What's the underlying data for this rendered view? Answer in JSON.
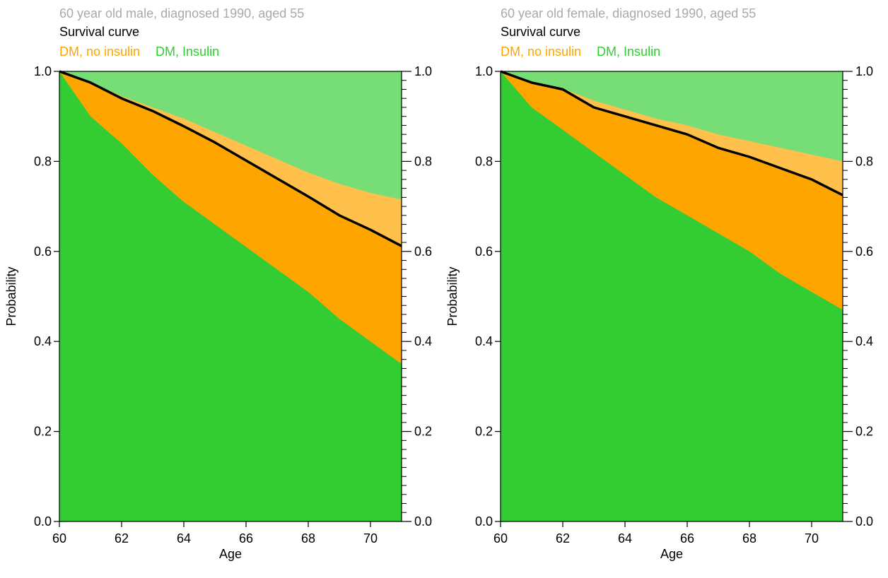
{
  "colors": {
    "insulin": "#33cc33",
    "insulin_light": "#77dd77",
    "no_insulin": "#ffa500",
    "no_insulin_light": "#ffc04c",
    "survival": "#000000",
    "subtitle": "#a9a9a9"
  },
  "chart_data": [
    {
      "type": "area",
      "title": "60 year old male, diagnosed 1990, aged 55",
      "subtitle": "Survival curve",
      "legend": [
        "DM, no insulin",
        "DM, Insulin"
      ],
      "legend_placement": "top-left",
      "xlabel": "Age",
      "ylabel": "Probability",
      "xlim": [
        60,
        71
      ],
      "ylim": [
        0,
        1
      ],
      "x_ticks": [
        "60",
        "62",
        "64",
        "66",
        "68",
        "70"
      ],
      "y_ticks": [
        "0.0",
        "0.2",
        "0.4",
        "0.6",
        "0.8",
        "1.0"
      ],
      "x": [
        60,
        61,
        62,
        63,
        64,
        65,
        66,
        67,
        68,
        69,
        70,
        71
      ],
      "series": [
        {
          "name": "DM, Insulin",
          "role": "alive_insulin",
          "values": [
            1.0,
            0.9,
            0.84,
            0.77,
            0.71,
            0.66,
            0.61,
            0.56,
            0.51,
            0.45,
            0.4,
            0.35
          ]
        },
        {
          "name": "DM, no insulin",
          "role": "alive_no_insulin",
          "values": [
            1.0,
            0.975,
            0.94,
            0.912,
            0.878,
            0.842,
            0.802,
            0.762,
            0.722,
            0.68,
            0.648,
            0.612
          ]
        },
        {
          "name": "Survival curve",
          "role": "survival",
          "values": [
            1.0,
            0.975,
            0.94,
            0.912,
            0.878,
            0.842,
            0.802,
            0.762,
            0.722,
            0.68,
            0.648,
            0.612
          ]
        },
        {
          "name": "DM, no insulin",
          "role": "dead_no_insulin",
          "values": [
            1.0,
            0.976,
            0.945,
            0.92,
            0.895,
            0.865,
            0.835,
            0.805,
            0.775,
            0.75,
            0.73,
            0.715
          ]
        }
      ]
    },
    {
      "type": "area",
      "title": "60 year old female, diagnosed 1990, aged 55",
      "subtitle": "Survival curve",
      "legend": [
        "DM, no insulin",
        "DM, Insulin"
      ],
      "legend_placement": "top-left",
      "xlabel": "Age",
      "ylabel": "Probability",
      "xlim": [
        60,
        71
      ],
      "ylim": [
        0,
        1
      ],
      "x_ticks": [
        "60",
        "62",
        "64",
        "66",
        "68",
        "70"
      ],
      "y_ticks": [
        "0.0",
        "0.2",
        "0.4",
        "0.6",
        "0.8",
        "1.0"
      ],
      "x": [
        60,
        61,
        62,
        63,
        64,
        65,
        66,
        67,
        68,
        69,
        70,
        71
      ],
      "series": [
        {
          "name": "DM, Insulin",
          "role": "alive_insulin",
          "values": [
            1.0,
            0.92,
            0.87,
            0.82,
            0.77,
            0.72,
            0.68,
            0.64,
            0.6,
            0.55,
            0.51,
            0.47
          ]
        },
        {
          "name": "DM, no insulin",
          "role": "alive_no_insulin",
          "values": [
            1.0,
            0.975,
            0.96,
            0.92,
            0.9,
            0.88,
            0.86,
            0.83,
            0.81,
            0.785,
            0.76,
            0.725
          ]
        },
        {
          "name": "Survival curve",
          "role": "survival",
          "values": [
            1.0,
            0.975,
            0.96,
            0.92,
            0.9,
            0.88,
            0.86,
            0.83,
            0.81,
            0.785,
            0.76,
            0.725
          ]
        },
        {
          "name": "DM, no insulin",
          "role": "dead_no_insulin",
          "values": [
            1.0,
            0.978,
            0.962,
            0.935,
            0.915,
            0.895,
            0.88,
            0.86,
            0.845,
            0.83,
            0.815,
            0.8
          ]
        }
      ]
    }
  ]
}
